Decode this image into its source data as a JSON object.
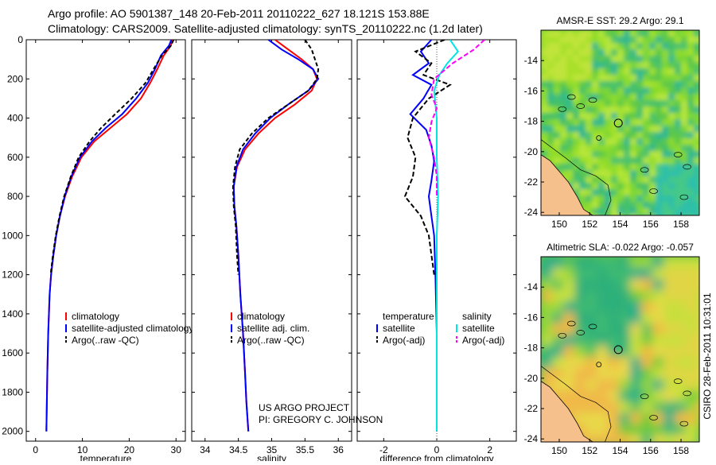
{
  "header": {
    "line1": "Argo profile: AO 5901387_148 20-Feb-2011 20110222_627 18.121S 153.88E",
    "line2": "Climatology: CARS2009. Satellite-adjusted climatology: synTS_20110222.nc (1.2d later)"
  },
  "side_label": "CSIRO 28-Feb-2011 10:31:01",
  "credit": {
    "line1": "US ARGO PROJECT",
    "line2": "PI: GREGORY C. JOHNSON"
  },
  "colors": {
    "climatology": "#ff0000",
    "satellite": "#0000ff",
    "argo": "#000000",
    "sat_salinity": "#00e5e5",
    "argo_salinity": "#ff00ff",
    "land": "#f5c08c"
  },
  "chart_data": [
    {
      "type": "line",
      "id": "temperature",
      "xlabel": "temperature",
      "ylabel": "",
      "xlim": [
        -2,
        32
      ],
      "ylim": [
        2050,
        0
      ],
      "xticks": [
        0,
        10,
        20,
        30
      ],
      "yticks": [
        0,
        200,
        400,
        600,
        800,
        1000,
        1200,
        1400,
        1600,
        1800,
        2000
      ],
      "legend": [
        "climatology",
        "satellite-adjusted climatology",
        "Argo(..raw -QC)"
      ],
      "series": [
        {
          "name": "climatology",
          "color": "#ff0000",
          "dash": "",
          "x": [
            29.2,
            28.9,
            27.4,
            26.0,
            24.5,
            22.5,
            19.5,
            16.0,
            12.5,
            9.8,
            7.8,
            6.3,
            5.2,
            4.4,
            3.8,
            3.3,
            3.0,
            2.7,
            2.5,
            2.4,
            2.3
          ],
          "y": [
            0,
            30,
            80,
            150,
            220,
            300,
            380,
            450,
            520,
            600,
            700,
            800,
            900,
            1000,
            1100,
            1200,
            1300,
            1500,
            1700,
            1850,
            2000
          ]
        },
        {
          "name": "satellite-adjusted climatology",
          "color": "#0000ff",
          "dash": "",
          "x": [
            29.0,
            28.5,
            26.8,
            25.5,
            24.0,
            21.5,
            18.5,
            15.0,
            12.0,
            9.5,
            7.6,
            6.2,
            5.2,
            4.4,
            3.8,
            3.3,
            3.0,
            2.7,
            2.5,
            2.4,
            2.3
          ],
          "y": [
            0,
            30,
            80,
            150,
            220,
            300,
            380,
            450,
            520,
            600,
            700,
            800,
            900,
            1000,
            1100,
            1200,
            1300,
            1500,
            1700,
            1850,
            2000
          ]
        },
        {
          "name": "Argo(..raw -QC)",
          "color": "#000000",
          "dash": "5,3",
          "x": [
            29.5,
            28.9,
            27.0,
            25.2,
            23.5,
            20.5,
            17.0,
            14.0,
            11.5,
            9.2,
            7.5,
            6.1,
            5.1,
            4.3,
            3.7,
            3.2
          ],
          "y": [
            0,
            30,
            80,
            150,
            220,
            300,
            380,
            450,
            520,
            600,
            700,
            800,
            900,
            1000,
            1100,
            1200
          ]
        }
      ]
    },
    {
      "type": "line",
      "id": "salinity",
      "xlabel": "salinity",
      "ylabel": "",
      "xlim": [
        33.8,
        36.2
      ],
      "ylim": [
        2050,
        0
      ],
      "xticks": [
        34,
        34.5,
        35,
        35.5,
        36
      ],
      "yticks": [
        0,
        200,
        400,
        600,
        800,
        1000,
        1200,
        1400,
        1600,
        1800,
        2000
      ],
      "legend": [
        "climatology",
        "satellite adj. clim.",
        "Argo(..raw -QC)"
      ],
      "series": [
        {
          "name": "climatology",
          "color": "#ff0000",
          "dash": "",
          "x": [
            35.05,
            35.25,
            35.45,
            35.62,
            35.68,
            35.6,
            35.35,
            35.05,
            34.8,
            34.6,
            34.48,
            34.43,
            34.44,
            34.47,
            34.5,
            34.53,
            34.57,
            34.6,
            34.62,
            34.65
          ],
          "y": [
            0,
            50,
            100,
            150,
            200,
            260,
            330,
            400,
            480,
            560,
            650,
            750,
            850,
            950,
            1100,
            1300,
            1500,
            1700,
            1850,
            2000
          ]
        },
        {
          "name": "satellite adj. clim.",
          "color": "#0000ff",
          "dash": "",
          "x": [
            34.95,
            35.15,
            35.4,
            35.62,
            35.7,
            35.55,
            35.25,
            34.98,
            34.75,
            34.57,
            34.47,
            34.43,
            34.44,
            34.47,
            34.5,
            34.53,
            34.57,
            34.6,
            34.62,
            34.65
          ],
          "y": [
            0,
            50,
            100,
            150,
            200,
            260,
            330,
            400,
            480,
            560,
            650,
            750,
            850,
            950,
            1100,
            1300,
            1500,
            1700,
            1850,
            2000
          ]
        },
        {
          "name": "Argo(..raw -QC)",
          "color": "#000000",
          "dash": "5,3",
          "x": [
            35.5,
            35.6,
            35.65,
            35.7,
            35.68,
            35.55,
            35.25,
            34.95,
            34.7,
            34.52,
            34.45,
            34.42,
            34.43,
            34.46,
            34.48,
            34.5
          ],
          "y": [
            0,
            50,
            100,
            150,
            200,
            260,
            330,
            400,
            480,
            560,
            650,
            750,
            850,
            950,
            1100,
            1200
          ]
        }
      ]
    },
    {
      "type": "line",
      "id": "difference",
      "xlabel": "difference from climatology",
      "ylabel": "",
      "xlim": [
        -3,
        3
      ],
      "ylim": [
        2050,
        0
      ],
      "xticks": [
        -2,
        0,
        2
      ],
      "yticks": [
        0,
        200,
        400,
        600,
        800,
        1000,
        1200,
        1400,
        1600,
        1800,
        2000
      ],
      "legend_groups": [
        {
          "title": "temperature",
          "items": [
            "satellite",
            "Argo(-adj)"
          ]
        },
        {
          "title": "salinity",
          "items": [
            "satellite",
            "Argo(-adj)"
          ]
        }
      ],
      "series": [
        {
          "name": "temperature satellite",
          "color": "#0000ff",
          "dash": "",
          "x": [
            -0.2,
            -0.6,
            -0.3,
            -0.9,
            -0.2,
            -0.5,
            -1.0,
            -0.4,
            -0.2,
            -0.1,
            -0.2,
            -0.3,
            -0.2,
            -0.1,
            -0.05,
            0.0,
            0.0,
            0.0
          ],
          "y": [
            0,
            60,
            120,
            180,
            230,
            300,
            380,
            460,
            540,
            620,
            720,
            800,
            900,
            1000,
            1200,
            1500,
            1800,
            2000
          ]
        },
        {
          "name": "temperature Argo(-adj)",
          "color": "#000000",
          "dash": "6,3",
          "x": [
            0.3,
            -0.8,
            -0.2,
            -0.5,
            0.5,
            -0.3,
            -0.9,
            -1.1,
            -0.8,
            -0.9,
            -1.2,
            -0.6,
            -0.3,
            -0.1
          ],
          "y": [
            0,
            60,
            120,
            180,
            230,
            300,
            400,
            500,
            600,
            700,
            800,
            900,
            1000,
            1200
          ]
        },
        {
          "name": "salinity satellite",
          "color": "#00e5e5",
          "dash": "",
          "x": [
            0.5,
            0.8,
            0.4,
            0.1,
            -0.1,
            0.0,
            0.0,
            0.05,
            0.0,
            0.0,
            0.0,
            0.0,
            0.0
          ],
          "y": [
            0,
            60,
            120,
            180,
            260,
            400,
            600,
            800,
            1000,
            1200,
            1500,
            1800,
            2000
          ]
        },
        {
          "name": "salinity Argo(-adj)",
          "color": "#ff00ff",
          "dash": "6,3",
          "x": [
            1.8,
            1.4,
            0.6,
            -0.1,
            -0.2,
            0.0,
            -0.2,
            -0.3,
            -0.1,
            0.0,
            0.0
          ],
          "y": [
            0,
            50,
            120,
            200,
            280,
            350,
            420,
            500,
            600,
            700,
            800
          ]
        }
      ]
    },
    {
      "type": "heatmap",
      "id": "sst_map",
      "title": "AMSR-E SST: 29.2  Argo: 29.1",
      "xticks": [
        150,
        152,
        154,
        156,
        158
      ],
      "yticks": [
        -14,
        -16,
        -18,
        -20,
        -22,
        -24
      ],
      "xlim": [
        148.8,
        159.2
      ],
      "ylim": [
        -24.2,
        -12.0
      ],
      "float_lon": 153.88,
      "float_lat": -18.121
    },
    {
      "type": "heatmap",
      "id": "sla_map",
      "title": "Altimetric SLA: -0.022  Argo: -0.057",
      "xticks": [
        150,
        152,
        154,
        156,
        158
      ],
      "yticks": [
        -14,
        -16,
        -18,
        -20,
        -22,
        -24
      ],
      "xlim": [
        148.8,
        159.2
      ],
      "ylim": [
        -24.2,
        -12.0
      ],
      "float_lon": 153.88,
      "float_lat": -18.121
    }
  ]
}
